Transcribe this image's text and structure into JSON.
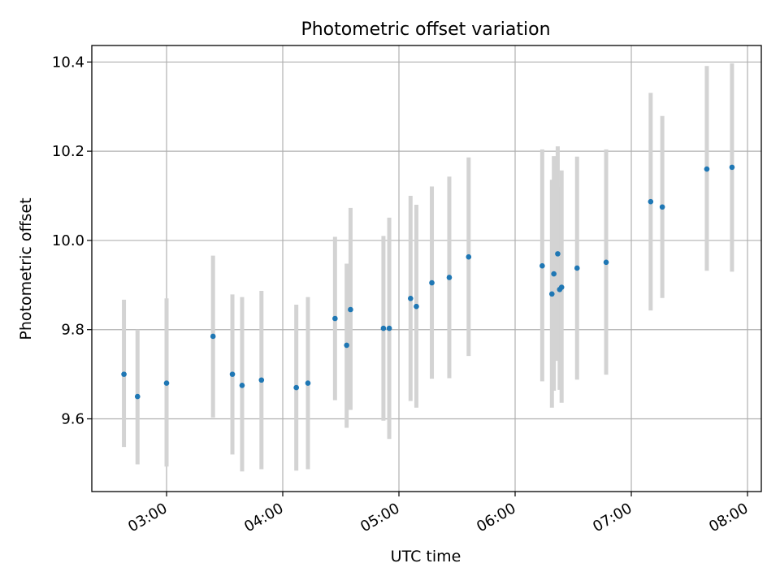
{
  "chart_data": {
    "type": "scatter",
    "title": "Photometric offset variation",
    "xlabel": "UTC time",
    "ylabel": "Photometric offset",
    "x_axis_type": "time",
    "xlim": [
      "02:25",
      "08:00"
    ],
    "ylim": [
      9.437,
      10.437
    ],
    "x_tick_labels": [
      "03:00",
      "04:00",
      "05:00",
      "06:00",
      "07:00",
      "08:00"
    ],
    "y_tick_labels": [
      "9.6",
      "9.8",
      "10.0",
      "10.2",
      "10.4"
    ],
    "y_tick_values": [
      9.6,
      9.8,
      10.0,
      10.2,
      10.4
    ],
    "grid": true,
    "legend": "none",
    "marker_color": "#1f77b4",
    "errorbar_color": "#d3d3d3",
    "points": [
      {
        "x": "02:38",
        "y": 9.7,
        "y_low": 9.537,
        "y_high": 9.867
      },
      {
        "x": "02:45",
        "y": 9.65,
        "y_low": 9.498,
        "y_high": 9.8
      },
      {
        "x": "03:00",
        "y": 9.68,
        "y_low": 9.493,
        "y_high": 9.87
      },
      {
        "x": "03:24",
        "y": 9.785,
        "y_low": 9.603,
        "y_high": 9.966
      },
      {
        "x": "03:34",
        "y": 9.7,
        "y_low": 9.52,
        "y_high": 9.879
      },
      {
        "x": "03:39",
        "y": 9.675,
        "y_low": 9.482,
        "y_high": 9.873
      },
      {
        "x": "03:49",
        "y": 9.687,
        "y_low": 9.487,
        "y_high": 9.887
      },
      {
        "x": "04:07",
        "y": 9.67,
        "y_low": 9.484,
        "y_high": 9.856
      },
      {
        "x": "04:13",
        "y": 9.68,
        "y_low": 9.487,
        "y_high": 9.873
      },
      {
        "x": "04:27",
        "y": 9.825,
        "y_low": 9.642,
        "y_high": 10.008
      },
      {
        "x": "04:33",
        "y": 9.765,
        "y_low": 9.58,
        "y_high": 9.948
      },
      {
        "x": "04:35",
        "y": 9.845,
        "y_low": 9.62,
        "y_high": 10.073
      },
      {
        "x": "04:52",
        "y": 9.803,
        "y_low": 9.596,
        "y_high": 10.01
      },
      {
        "x": "04:55",
        "y": 9.803,
        "y_low": 9.555,
        "y_high": 10.051
      },
      {
        "x": "05:06",
        "y": 9.87,
        "y_low": 9.64,
        "y_high": 10.1
      },
      {
        "x": "05:09",
        "y": 9.852,
        "y_low": 9.625,
        "y_high": 10.08
      },
      {
        "x": "05:17",
        "y": 9.905,
        "y_low": 9.69,
        "y_high": 10.121
      },
      {
        "x": "05:26",
        "y": 9.917,
        "y_low": 9.691,
        "y_high": 10.143
      },
      {
        "x": "05:36",
        "y": 9.963,
        "y_low": 9.741,
        "y_high": 10.186
      },
      {
        "x": "06:14",
        "y": 9.943,
        "y_low": 9.684,
        "y_high": 10.204
      },
      {
        "x": "06:19",
        "y": 9.88,
        "y_low": 9.625,
        "y_high": 10.136
      },
      {
        "x": "06:20",
        "y": 9.925,
        "y_low": 9.663,
        "y_high": 10.189
      },
      {
        "x": "06:22",
        "y": 9.97,
        "y_low": 9.73,
        "y_high": 10.211
      },
      {
        "x": "06:23",
        "y": 9.89,
        "y_low": 9.665,
        "y_high": 10.12
      },
      {
        "x": "06:24",
        "y": 9.895,
        "y_low": 9.636,
        "y_high": 10.157
      },
      {
        "x": "06:32",
        "y": 9.938,
        "y_low": 9.688,
        "y_high": 10.188
      },
      {
        "x": "06:47",
        "y": 9.951,
        "y_low": 9.699,
        "y_high": 10.204
      },
      {
        "x": "07:10",
        "y": 10.087,
        "y_low": 9.843,
        "y_high": 10.331
      },
      {
        "x": "07:16",
        "y": 10.075,
        "y_low": 9.871,
        "y_high": 10.279
      },
      {
        "x": "07:39",
        "y": 10.16,
        "y_low": 9.932,
        "y_high": 10.391
      },
      {
        "x": "07:52",
        "y": 10.164,
        "y_low": 9.93,
        "y_high": 10.397
      }
    ]
  }
}
